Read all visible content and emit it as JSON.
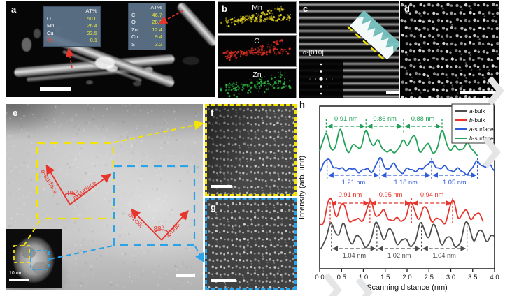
{
  "panels": {
    "a": {
      "label": "a",
      "eds_tables": [
        {
          "header": "AT%",
          "rows": [
            {
              "element": "O",
              "value": "50.0",
              "highlight": false
            },
            {
              "element": "Mn",
              "value": "26.4",
              "highlight": false
            },
            {
              "element": "Cu",
              "value": "23.5",
              "highlight": false
            },
            {
              "element": "Zn",
              "value": "0.1",
              "highlight": true
            }
          ]
        },
        {
          "header": "AT%",
          "rows": [
            {
              "element": "C",
              "value": "46.7",
              "highlight": false
            },
            {
              "element": "O",
              "value": "28.3",
              "highlight": false
            },
            {
              "element": "Zn",
              "value": "12.4",
              "highlight": false
            },
            {
              "element": "Cu",
              "value": "9.4",
              "highlight": false
            },
            {
              "element": "S",
              "value": "3.2",
              "highlight": false
            }
          ]
        }
      ]
    },
    "b": {
      "label": "b",
      "maps": [
        {
          "name": "Mn",
          "color": "#e0cf1e"
        },
        {
          "name": "O",
          "color": "#e23020"
        },
        {
          "name": "Zn",
          "color": "#2fc244"
        }
      ]
    },
    "c": {
      "label": "c",
      "zone_axis": "α-[010]"
    },
    "d": {
      "label": "d"
    },
    "e": {
      "label": "e",
      "surface_angle": "85°",
      "bulk_angle": "88°",
      "direction_labels": [
        {
          "prefix": "b",
          "rest": "-surface"
        },
        {
          "prefix": "a",
          "rest": "-surface"
        },
        {
          "prefix": "b",
          "rest": "-bulk"
        },
        {
          "prefix": "a",
          "rest": "-bulk"
        }
      ],
      "inset_scale_label": "10 nm"
    },
    "f": {
      "label": "f"
    },
    "g": {
      "label": "g"
    },
    "h": {
      "label": "h"
    }
  },
  "colors": {
    "annotation_red": "#e8342c",
    "box_yellow": "#f5e400",
    "box_blue": "#2aa3e8",
    "table_bg": "#5f748b",
    "table_value_yellow": "#e9e73b",
    "teal_profile_inset": "#7ac6c3"
  },
  "chart_data": {
    "type": "line",
    "xlabel": "Scanning distance (nm)",
    "ylabel": "Intensity (arb. unit)",
    "xlim": [
      0.0,
      4.0
    ],
    "xticks": [
      "0.0",
      "0.5",
      "1.0",
      "1.5",
      "2.0",
      "2.5",
      "3.0",
      "3.5",
      "4.0"
    ],
    "grid": false,
    "legend_position": "top-right",
    "series": [
      {
        "name": "a-bulk",
        "prefix": "a",
        "rest": "-bulk",
        "color": "#4d4d4d",
        "x_range": [
          0.0,
          4.0
        ],
        "marked_peaks_nm": [
          0.27,
          1.31,
          2.33,
          3.37
        ],
        "spacing_annotations": [
          {
            "label": "1.04 nm",
            "from": 0.27,
            "to": 1.31
          },
          {
            "label": "1.02 nm",
            "from": 1.31,
            "to": 2.33
          },
          {
            "label": "1.04 nm",
            "from": 2.33,
            "to": 3.37
          }
        ],
        "profile_peaks": [
          [
            0.27,
            0.95
          ],
          [
            0.55,
            0.88
          ],
          [
            0.88,
            0.42
          ],
          [
            1.31,
            1.0
          ],
          [
            1.62,
            0.72
          ],
          [
            1.95,
            0.3
          ],
          [
            2.33,
            0.95
          ],
          [
            2.62,
            0.85
          ],
          [
            2.95,
            0.38
          ],
          [
            3.37,
            1.0
          ],
          [
            3.68,
            0.65
          ],
          [
            3.95,
            0.45
          ]
        ]
      },
      {
        "name": "b-bulk",
        "prefix": "b",
        "rest": "-bulk",
        "color": "#e8342c",
        "x_range": [
          0.0,
          3.75
        ],
        "marked_peaks_nm": [
          0.24,
          1.15,
          2.1,
          3.04
        ],
        "spacing_annotations": [
          {
            "label": "0.91 nm",
            "from": 0.24,
            "to": 1.15
          },
          {
            "label": "0.95 nm",
            "from": 1.15,
            "to": 2.1
          },
          {
            "label": "0.94 nm",
            "from": 2.1,
            "to": 3.04
          }
        ],
        "profile_peaks": [
          [
            0.24,
            1.0
          ],
          [
            0.52,
            0.82
          ],
          [
            0.82,
            0.25
          ],
          [
            1.15,
            0.95
          ],
          [
            1.45,
            0.62
          ],
          [
            1.78,
            0.3
          ],
          [
            2.1,
            0.9
          ],
          [
            2.42,
            0.72
          ],
          [
            2.72,
            0.22
          ],
          [
            3.04,
            0.9
          ],
          [
            3.32,
            0.55
          ],
          [
            3.6,
            0.5
          ]
        ]
      },
      {
        "name": "a-surface",
        "prefix": "a",
        "rest": "-surface",
        "color": "#2e5bd7",
        "x_range": [
          0.0,
          4.0
        ],
        "marked_peaks_nm": [
          0.17,
          1.38,
          2.56,
          3.61
        ],
        "spacing_annotations": [
          {
            "label": "1.21 nm",
            "from": 0.17,
            "to": 1.38
          },
          {
            "label": "1.18 nm",
            "from": 1.38,
            "to": 2.56
          },
          {
            "label": "1.05 nm",
            "from": 2.56,
            "to": 3.61
          }
        ],
        "profile_peaks": [
          [
            0.17,
            1.0
          ],
          [
            0.48,
            0.5
          ],
          [
            0.78,
            0.42
          ],
          [
            1.08,
            0.35
          ],
          [
            1.38,
            0.9
          ],
          [
            1.68,
            0.6
          ],
          [
            2.0,
            0.36
          ],
          [
            2.28,
            0.42
          ],
          [
            2.56,
            0.85
          ],
          [
            2.88,
            0.55
          ],
          [
            3.2,
            0.38
          ],
          [
            3.61,
            0.85
          ],
          [
            3.9,
            0.6
          ]
        ]
      },
      {
        "name": "b-surface",
        "prefix": "b",
        "rest": "-surface",
        "color": "#22a158",
        "x_range": [
          0.0,
          3.62
        ],
        "marked_peaks_nm": [
          0.15,
          1.06,
          1.92,
          2.8
        ],
        "spacing_annotations": [
          {
            "label": "0.91 nm",
            "from": 0.15,
            "to": 1.06
          },
          {
            "label": "0.86 nm",
            "from": 1.06,
            "to": 1.92
          },
          {
            "label": "0.88 nm",
            "from": 1.92,
            "to": 2.8
          }
        ],
        "profile_peaks": [
          [
            0.15,
            0.85
          ],
          [
            0.48,
            1.0
          ],
          [
            0.8,
            0.4
          ],
          [
            1.06,
            0.95
          ],
          [
            1.32,
            0.65
          ],
          [
            1.62,
            0.25
          ],
          [
            1.92,
            0.6
          ],
          [
            2.15,
            0.75
          ],
          [
            2.45,
            0.45
          ],
          [
            2.8,
            0.95
          ],
          [
            3.08,
            0.4
          ],
          [
            3.38,
            0.55
          ]
        ]
      }
    ]
  }
}
